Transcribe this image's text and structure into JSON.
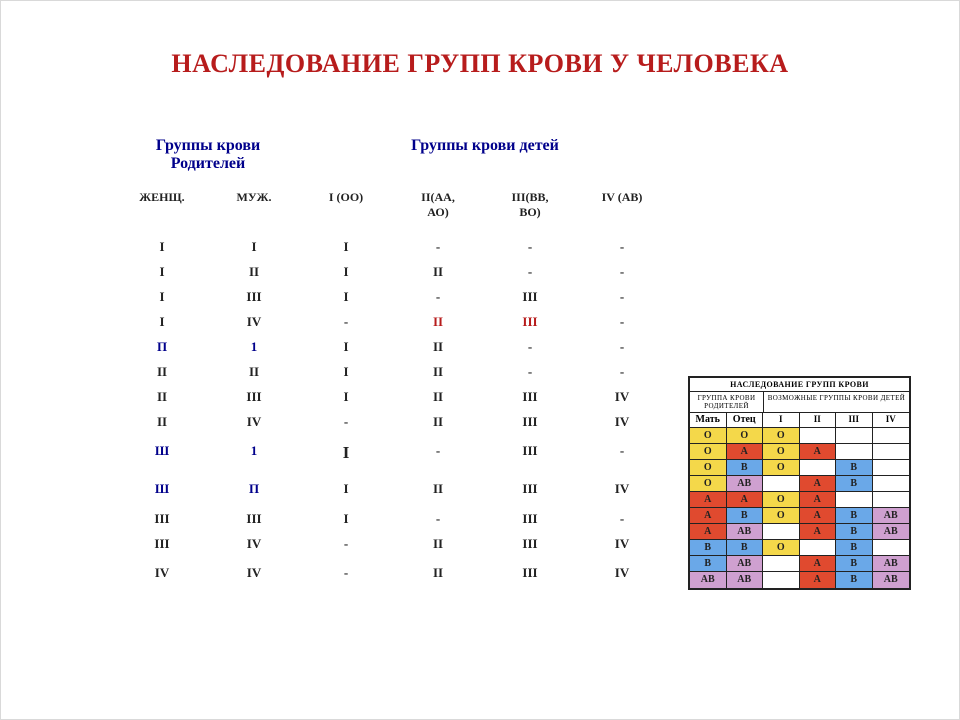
{
  "title": "НАСЛЕДОВАНИЕ ГРУПП КРОВИ У ЧЕЛОВЕКА",
  "main_table": {
    "header_parents": "Группы крови Родителей",
    "header_children": "Группы крови детей",
    "sub_headers": [
      "ЖЕНЩ.",
      "МУЖ.",
      "I (OO)",
      "II(АА,\nАО)",
      "III(ВВ,\nВО)",
      "IV (АВ)"
    ],
    "rows": [
      {
        "cells": [
          {
            "t": "I",
            "c": "blk"
          },
          {
            "t": "I",
            "c": "blk"
          },
          {
            "t": "I",
            "c": "blk"
          },
          {
            "t": "-",
            "c": "blk"
          },
          {
            "t": "-",
            "c": "blk"
          },
          {
            "t": "-",
            "c": "blk"
          }
        ]
      },
      {
        "cells": [
          {
            "t": "I",
            "c": "blk"
          },
          {
            "t": "II",
            "c": "blk"
          },
          {
            "t": "I",
            "c": "blk"
          },
          {
            "t": "II",
            "c": "blk"
          },
          {
            "t": "-",
            "c": "blk"
          },
          {
            "t": "-",
            "c": "blk"
          }
        ]
      },
      {
        "cells": [
          {
            "t": "I",
            "c": "blk"
          },
          {
            "t": "III",
            "c": "blk"
          },
          {
            "t": "I",
            "c": "blk"
          },
          {
            "t": "-",
            "c": "blk"
          },
          {
            "t": "III",
            "c": "blk"
          },
          {
            "t": "-",
            "c": "blk"
          }
        ]
      },
      {
        "cells": [
          {
            "t": "I",
            "c": "blk"
          },
          {
            "t": "IV",
            "c": "blk"
          },
          {
            "t": "-",
            "c": "blk"
          },
          {
            "t": "II",
            "c": "red"
          },
          {
            "t": "III",
            "c": "red"
          },
          {
            "t": "-",
            "c": "blk"
          }
        ]
      },
      {
        "cells": [
          {
            "t": "П",
            "c": "navy"
          },
          {
            "t": "1",
            "c": "navy"
          },
          {
            "t": "I",
            "c": "blk"
          },
          {
            "t": "II",
            "c": "blk"
          },
          {
            "t": "-",
            "c": "blk"
          },
          {
            "t": "-",
            "c": "blk"
          }
        ]
      },
      {
        "cells": [
          {
            "t": "II",
            "c": "blk"
          },
          {
            "t": "II",
            "c": "blk"
          },
          {
            "t": "I",
            "c": "blk"
          },
          {
            "t": "II",
            "c": "blk"
          },
          {
            "t": "-",
            "c": "blk"
          },
          {
            "t": "-",
            "c": "blk"
          }
        ]
      },
      {
        "cells": [
          {
            "t": "II",
            "c": "blk"
          },
          {
            "t": "III",
            "c": "blk"
          },
          {
            "t": "I",
            "c": "blk"
          },
          {
            "t": "II",
            "c": "blk"
          },
          {
            "t": "III",
            "c": "blk"
          },
          {
            "t": "IV",
            "c": "blk"
          }
        ]
      },
      {
        "cells": [
          {
            "t": "II",
            "c": "blk"
          },
          {
            "t": "IV",
            "c": "blk"
          },
          {
            "t": "-",
            "c": "blk"
          },
          {
            "t": "II",
            "c": "blk"
          },
          {
            "t": "III",
            "c": "blk"
          },
          {
            "t": "IV",
            "c": "blk"
          }
        ]
      },
      {
        "gap": true,
        "cells": [
          {
            "t": "Ш",
            "c": "navy"
          },
          {
            "t": "1",
            "c": "navy"
          },
          {
            "t": "I",
            "c": "blk",
            "big": true
          },
          {
            "t": "-",
            "c": "blk"
          },
          {
            "t": "III",
            "c": "blk"
          },
          {
            "t": "-",
            "c": "blk"
          }
        ]
      },
      {
        "gap": true,
        "cells": [
          {
            "t": "Ш",
            "c": "navy"
          },
          {
            "t": "П",
            "c": "navy"
          },
          {
            "t": "I",
            "c": "blk"
          },
          {
            "t": "II",
            "c": "blk"
          },
          {
            "t": "III",
            "c": "blk"
          },
          {
            "t": "IV",
            "c": "blk"
          }
        ]
      },
      {
        "cells": [
          {
            "t": "III",
            "c": "blk"
          },
          {
            "t": "III",
            "c": "blk"
          },
          {
            "t": "I",
            "c": "blk"
          },
          {
            "t": "-",
            "c": "blk"
          },
          {
            "t": "III",
            "c": "blk"
          },
          {
            "t": "-",
            "c": "blk"
          }
        ]
      },
      {
        "cells": [
          {
            "t": "III",
            "c": "blk"
          },
          {
            "t": "IV",
            "c": "blk"
          },
          {
            "t": "-",
            "c": "blk"
          },
          {
            "t": "II",
            "c": "blk"
          },
          {
            "t": "III",
            "c": "blk"
          },
          {
            "t": "IV",
            "c": "blk"
          }
        ]
      },
      {
        "gap": true,
        "cells": [
          {
            "t": "IV",
            "c": "blk"
          },
          {
            "t": "IV",
            "c": "blk"
          },
          {
            "t": "-",
            "c": "blk"
          },
          {
            "t": "II",
            "c": "blk"
          },
          {
            "t": "III",
            "c": "blk"
          },
          {
            "t": "IV",
            "c": "blk"
          }
        ]
      }
    ]
  },
  "side_table": {
    "title": "НАСЛЕДОВАНИЕ ГРУПП КРОВИ",
    "sub_parents": "ГРУППА КРОВИ РОДИТЕЛЕЙ",
    "sub_children": "ВОЗМОЖНЫЕ ГРУППЫ КРОВИ ДЕТЕЙ",
    "headers": {
      "parents": [
        "Мать",
        "Отец"
      ],
      "children": [
        "I",
        "II",
        "III",
        "IV"
      ]
    },
    "colors": {
      "yellow": "#f4d84a",
      "red": "#e04a2f",
      "orange": "#f18a2f",
      "blue": "#6aa8e8",
      "purple": "#cfa0d0",
      "white": "#ffffff",
      "text": "#222222"
    },
    "rows": [
      {
        "p": [
          {
            "t": "O",
            "bg": "yellow"
          },
          {
            "t": "O",
            "bg": "yellow"
          }
        ],
        "c": [
          {
            "t": "O",
            "bg": "yellow"
          },
          {
            "t": "",
            "bg": "white"
          },
          {
            "t": "",
            "bg": "white"
          },
          {
            "t": "",
            "bg": "white"
          }
        ]
      },
      {
        "p": [
          {
            "t": "O",
            "bg": "yellow"
          },
          {
            "t": "A",
            "bg": "red"
          }
        ],
        "c": [
          {
            "t": "O",
            "bg": "yellow"
          },
          {
            "t": "A",
            "bg": "red"
          },
          {
            "t": "",
            "bg": "white"
          },
          {
            "t": "",
            "bg": "white"
          }
        ]
      },
      {
        "p": [
          {
            "t": "O",
            "bg": "yellow"
          },
          {
            "t": "B",
            "bg": "blue"
          }
        ],
        "c": [
          {
            "t": "O",
            "bg": "yellow"
          },
          {
            "t": "",
            "bg": "white"
          },
          {
            "t": "B",
            "bg": "blue"
          },
          {
            "t": "",
            "bg": "white"
          }
        ]
      },
      {
        "p": [
          {
            "t": "O",
            "bg": "yellow"
          },
          {
            "t": "AB",
            "bg": "purple"
          }
        ],
        "c": [
          {
            "t": "",
            "bg": "white"
          },
          {
            "t": "A",
            "bg": "red"
          },
          {
            "t": "B",
            "bg": "blue"
          },
          {
            "t": "",
            "bg": "white"
          }
        ]
      },
      {
        "p": [
          {
            "t": "A",
            "bg": "red"
          },
          {
            "t": "A",
            "bg": "red"
          }
        ],
        "c": [
          {
            "t": "O",
            "bg": "yellow"
          },
          {
            "t": "A",
            "bg": "red"
          },
          {
            "t": "",
            "bg": "white"
          },
          {
            "t": "",
            "bg": "white"
          }
        ]
      },
      {
        "p": [
          {
            "t": "A",
            "bg": "red"
          },
          {
            "t": "B",
            "bg": "blue"
          }
        ],
        "c": [
          {
            "t": "O",
            "bg": "yellow"
          },
          {
            "t": "A",
            "bg": "red"
          },
          {
            "t": "B",
            "bg": "blue"
          },
          {
            "t": "AB",
            "bg": "purple"
          }
        ]
      },
      {
        "p": [
          {
            "t": "A",
            "bg": "red"
          },
          {
            "t": "AB",
            "bg": "purple"
          }
        ],
        "c": [
          {
            "t": "",
            "bg": "white"
          },
          {
            "t": "A",
            "bg": "red"
          },
          {
            "t": "B",
            "bg": "blue"
          },
          {
            "t": "AB",
            "bg": "purple"
          }
        ]
      },
      {
        "p": [
          {
            "t": "B",
            "bg": "blue"
          },
          {
            "t": "B",
            "bg": "blue"
          }
        ],
        "c": [
          {
            "t": "O",
            "bg": "yellow"
          },
          {
            "t": "",
            "bg": "white"
          },
          {
            "t": "B",
            "bg": "blue"
          },
          {
            "t": "",
            "bg": "white"
          }
        ]
      },
      {
        "p": [
          {
            "t": "B",
            "bg": "blue"
          },
          {
            "t": "AB",
            "bg": "purple"
          }
        ],
        "c": [
          {
            "t": "",
            "bg": "white"
          },
          {
            "t": "A",
            "bg": "red"
          },
          {
            "t": "B",
            "bg": "blue"
          },
          {
            "t": "AB",
            "bg": "purple"
          }
        ]
      },
      {
        "p": [
          {
            "t": "AB",
            "bg": "purple"
          },
          {
            "t": "AB",
            "bg": "purple"
          }
        ],
        "c": [
          {
            "t": "",
            "bg": "white"
          },
          {
            "t": "A",
            "bg": "red"
          },
          {
            "t": "B",
            "bg": "blue"
          },
          {
            "t": "AB",
            "bg": "purple"
          }
        ]
      }
    ]
  }
}
